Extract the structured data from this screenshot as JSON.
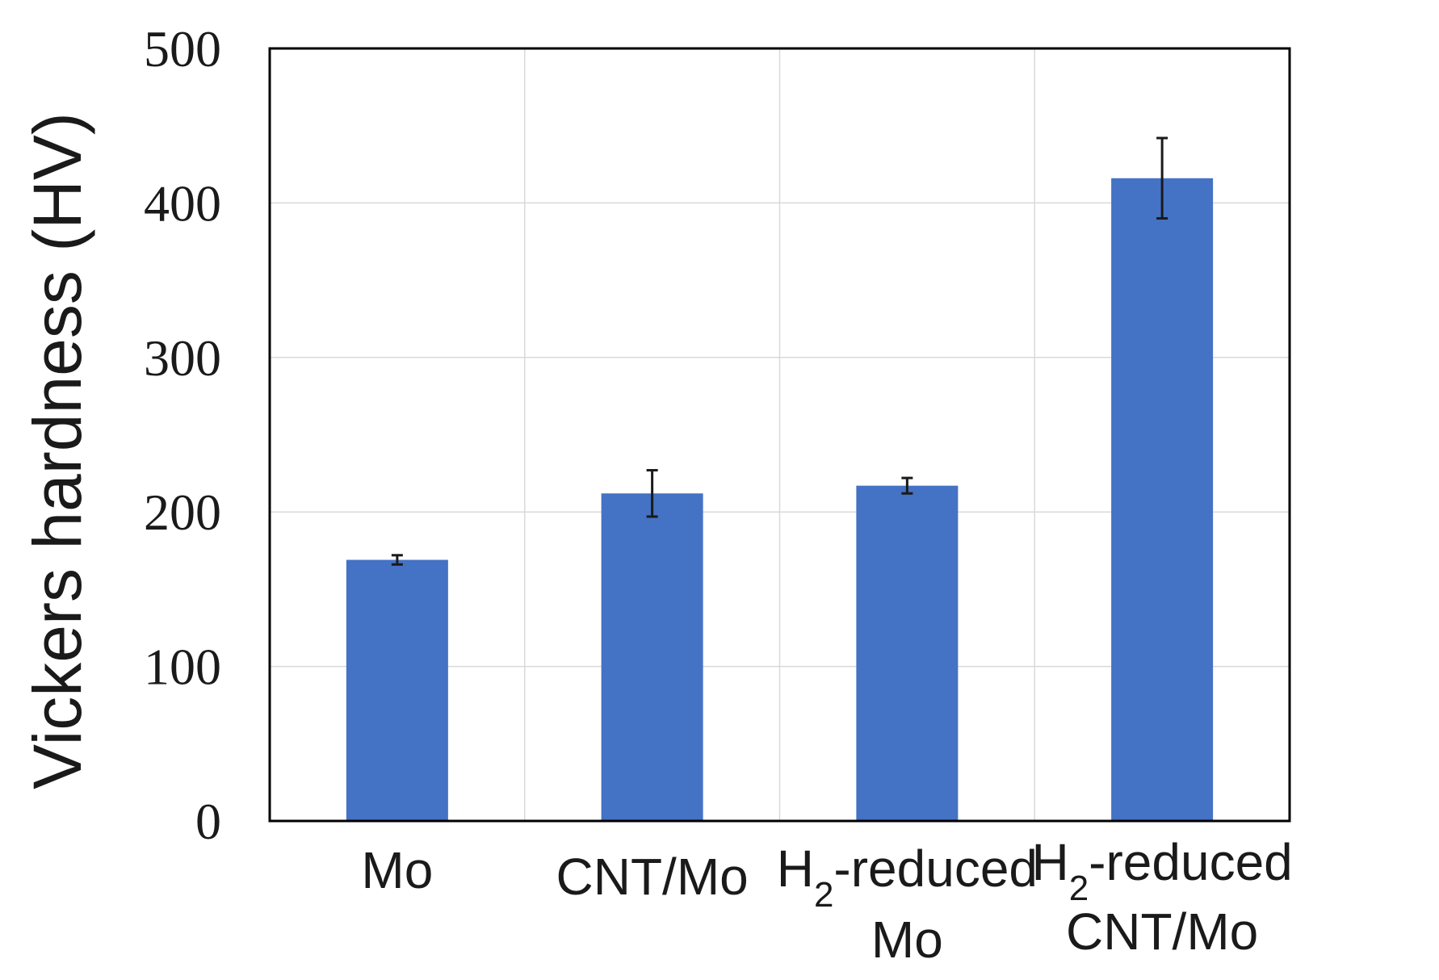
{
  "chart_data": {
    "type": "bar",
    "title": "",
    "xlabel": "",
    "ylabel": "Vickers hardness (HV)",
    "ylim": [
      0,
      500
    ],
    "yticks": [
      0,
      100,
      200,
      300,
      400,
      500
    ],
    "grid": true,
    "categories": [
      {
        "lines": [
          "Mo"
        ],
        "parts": [
          {
            "text": "Mo"
          }
        ]
      },
      {
        "lines": [
          "CNT/Mo"
        ],
        "parts": [
          {
            "text": "CNT/Mo"
          }
        ]
      },
      {
        "lines": [
          "H2-reduced",
          "Mo"
        ],
        "parts": [
          {
            "text": "H"
          },
          {
            "text": "2",
            "sub": true
          },
          {
            "text": "-reduced"
          }
        ],
        "second_line": "Mo"
      },
      {
        "lines": [
          "H2-reduced",
          "CNT/Mo"
        ],
        "parts": [
          {
            "text": "H"
          },
          {
            "text": "2",
            "sub": true
          },
          {
            "text": "-reduced"
          }
        ],
        "second_line": "CNT/Mo"
      }
    ],
    "series": [
      {
        "name": "Vickers hardness",
        "color": "#4472C4",
        "values": [
          169,
          212,
          217,
          416
        ],
        "errors": [
          3,
          15,
          5,
          26
        ]
      }
    ]
  }
}
